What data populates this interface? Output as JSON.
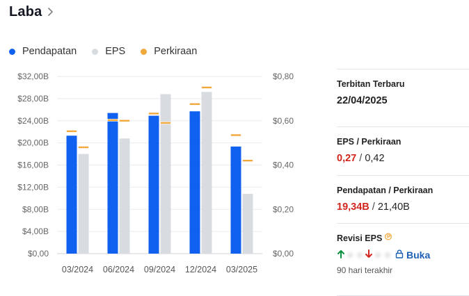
{
  "header": {
    "title": "Laba"
  },
  "legend": [
    {
      "label": "Pendapatan",
      "color": "#1061f0"
    },
    {
      "label": "EPS",
      "color": "#d8dbe0"
    },
    {
      "label": "Perkiraan",
      "color": "#f2a93b"
    }
  ],
  "chart_data": {
    "type": "bar",
    "title": "",
    "categories": [
      "03/2024",
      "06/2024",
      "09/2024",
      "12/2024",
      "03/2025"
    ],
    "left_axis": {
      "ticks": [
        "$0,00",
        "$4,00B",
        "$8,00B",
        "$12,00B",
        "$16,00B",
        "$20,00B",
        "$24,00B",
        "$28,00B",
        "$32,00B"
      ],
      "ylim": [
        0,
        32
      ]
    },
    "right_axis": {
      "ticks": [
        "$0,00",
        "$0,20",
        "$0,40",
        "$0,60",
        "$0,80"
      ],
      "ylim": [
        0,
        0.8
      ]
    },
    "series": [
      {
        "name": "Pendapatan",
        "axis": "left",
        "color": "#1061f0",
        "values": [
          21.3,
          25.4,
          24.9,
          25.7,
          19.34
        ]
      },
      {
        "name": "EPS",
        "axis": "right",
        "color": "#d8dbe0",
        "values": [
          0.45,
          0.52,
          0.72,
          0.73,
          0.27
        ]
      },
      {
        "name": "Perkiraan",
        "axis": "left",
        "color": "#f2a93b",
        "target": "Pendapatan",
        "values": [
          22.1,
          24.1,
          25.3,
          27.0,
          21.4
        ]
      },
      {
        "name": "Perkiraan",
        "axis": "right",
        "color": "#f2a93b",
        "target": "EPS",
        "values": [
          0.48,
          0.6,
          0.59,
          0.75,
          0.42
        ]
      }
    ],
    "grid": true
  },
  "side": {
    "latest_label": "Terbitan Terbaru",
    "latest_date": "22/04/2025",
    "eps_label": "EPS / Perkiraan",
    "eps_actual": "0,27",
    "eps_sep": "/",
    "eps_estimate": "0,42",
    "rev_label": "Pendapatan / Perkiraan",
    "rev_actual": "19,34B",
    "rev_sep": "/",
    "rev_estimate": "21,40B",
    "revision_label": "Revisi EPS",
    "unlock_label": "Buka",
    "period_label": "90 hari terakhir"
  }
}
